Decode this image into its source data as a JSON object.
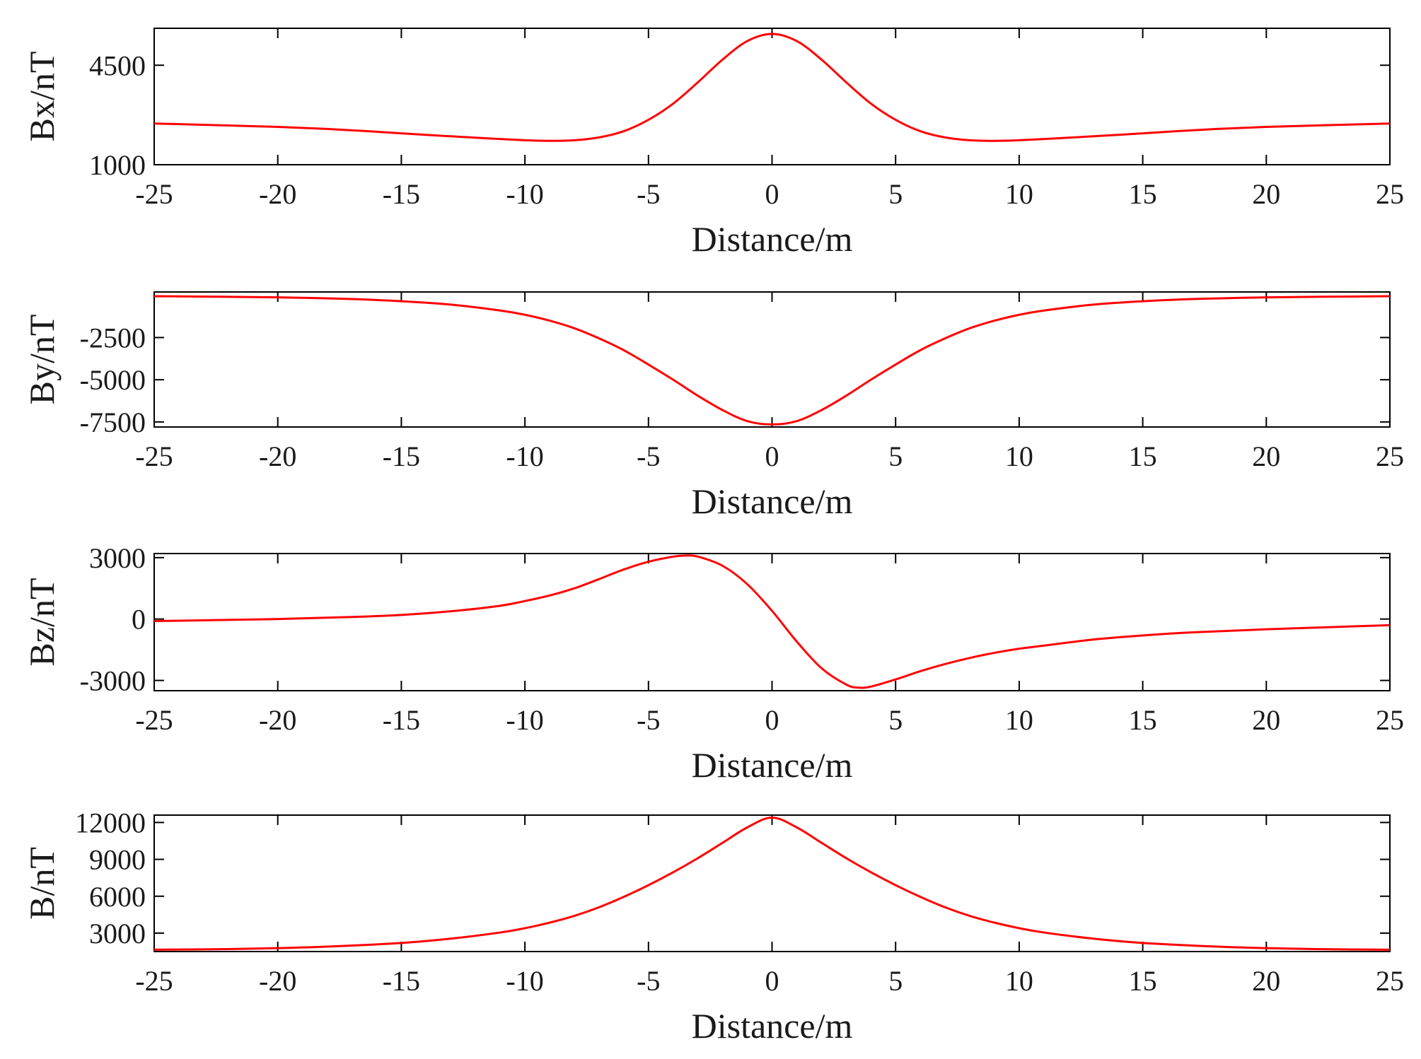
{
  "chart_data": [
    {
      "type": "line",
      "ylabel": "Bx/nT",
      "xlabel": "Distance/m",
      "xlim": [
        -25,
        25
      ],
      "ylim": [
        1000,
        5800
      ],
      "xticks": [
        -25,
        -20,
        -15,
        -10,
        -5,
        0,
        5,
        10,
        15,
        20,
        25
      ],
      "yticks": [
        1000,
        4500
      ],
      "color": "#ff0000",
      "series": [
        {
          "x": [
            -25,
            -22,
            -20,
            -18,
            -16,
            -14,
            -12,
            -10,
            -9,
            -8,
            -7,
            -6,
            -5,
            -4,
            -3,
            -2,
            -1,
            0,
            1,
            2,
            3,
            4,
            5,
            6,
            7,
            8,
            9,
            10,
            12,
            14,
            16,
            18,
            20,
            22,
            25
          ],
          "values": [
            2450,
            2380,
            2330,
            2260,
            2160,
            2050,
            1950,
            1860,
            1840,
            1860,
            1960,
            2180,
            2580,
            3150,
            3900,
            4700,
            5350,
            5600,
            5350,
            4700,
            3900,
            3150,
            2580,
            2180,
            1960,
            1860,
            1840,
            1860,
            1950,
            2050,
            2160,
            2260,
            2330,
            2380,
            2450
          ]
        }
      ]
    },
    {
      "type": "line",
      "ylabel": "By/nT",
      "xlabel": "Distance/m",
      "xlim": [
        -25,
        25
      ],
      "ylim": [
        -7800,
        200
      ],
      "xticks": [
        -25,
        -20,
        -15,
        -10,
        -5,
        0,
        5,
        10,
        15,
        20,
        25
      ],
      "yticks": [
        -2500,
        -5000,
        -7500
      ],
      "color": "#ff0000",
      "series": [
        {
          "x": [
            -25,
            -20,
            -17,
            -15,
            -13,
            -11,
            -10,
            -9,
            -8,
            -7,
            -6,
            -5,
            -4,
            -3,
            -2,
            -1,
            0,
            1,
            2,
            3,
            4,
            5,
            6,
            7,
            8,
            9,
            10,
            11,
            13,
            15,
            17,
            20,
            25
          ],
          "values": [
            -50,
            -120,
            -220,
            -350,
            -550,
            -900,
            -1150,
            -1500,
            -1950,
            -2550,
            -3250,
            -4100,
            -5000,
            -5950,
            -6800,
            -7450,
            -7650,
            -7450,
            -6800,
            -5950,
            -5000,
            -4100,
            -3250,
            -2550,
            -1950,
            -1500,
            -1150,
            -900,
            -550,
            -350,
            -220,
            -120,
            -50
          ]
        }
      ]
    },
    {
      "type": "line",
      "ylabel": "Bz/nT",
      "xlabel": "Distance/m",
      "xlim": [
        -25,
        25
      ],
      "ylim": [
        -3500,
        3200
      ],
      "xticks": [
        -25,
        -20,
        -15,
        -10,
        -5,
        0,
        5,
        10,
        15,
        20,
        25
      ],
      "yticks": [
        3000,
        0,
        -3000
      ],
      "color": "#ff0000",
      "series": [
        {
          "x": [
            -25,
            -20,
            -17,
            -15,
            -13,
            -11,
            -10,
            -9,
            -8,
            -7,
            -6,
            -5,
            -4,
            -3.5,
            -3,
            -2,
            -1,
            0,
            1,
            2,
            3,
            3.5,
            4,
            5,
            6,
            7,
            8,
            9,
            10,
            11,
            13,
            15,
            17,
            20,
            25
          ],
          "values": [
            -100,
            0,
            100,
            200,
            380,
            650,
            880,
            1150,
            1500,
            1950,
            2420,
            2800,
            3050,
            3100,
            3050,
            2600,
            1700,
            400,
            -1100,
            -2400,
            -3200,
            -3350,
            -3300,
            -2950,
            -2550,
            -2200,
            -1900,
            -1650,
            -1450,
            -1300,
            -1000,
            -800,
            -650,
            -500,
            -300
          ]
        }
      ]
    },
    {
      "type": "line",
      "ylabel": "B/nT",
      "xlabel": "Distance/m",
      "xlim": [
        -25,
        25
      ],
      "ylim": [
        1500,
        12600
      ],
      "xticks": [
        -25,
        -20,
        -15,
        -10,
        -5,
        0,
        5,
        10,
        15,
        20,
        25
      ],
      "yticks": [
        12000,
        9000,
        6000,
        3000
      ],
      "color": "#ff0000",
      "series": [
        {
          "x": [
            -25,
            -22,
            -20,
            -18,
            -15,
            -13,
            -11,
            -10,
            -9,
            -8,
            -7,
            -6,
            -5,
            -4,
            -3,
            -2,
            -1,
            0,
            1,
            2,
            3,
            4,
            5,
            6,
            7,
            8,
            9,
            10,
            11,
            13,
            15,
            18,
            20,
            22,
            25
          ],
          "values": [
            1650,
            1700,
            1780,
            1900,
            2200,
            2550,
            3050,
            3400,
            3850,
            4400,
            5100,
            5950,
            6900,
            7950,
            9100,
            10350,
            11600,
            12400,
            11600,
            10350,
            9100,
            7950,
            6900,
            5950,
            5100,
            4400,
            3850,
            3400,
            3050,
            2550,
            2200,
            1900,
            1780,
            1700,
            1650
          ]
        }
      ]
    }
  ]
}
